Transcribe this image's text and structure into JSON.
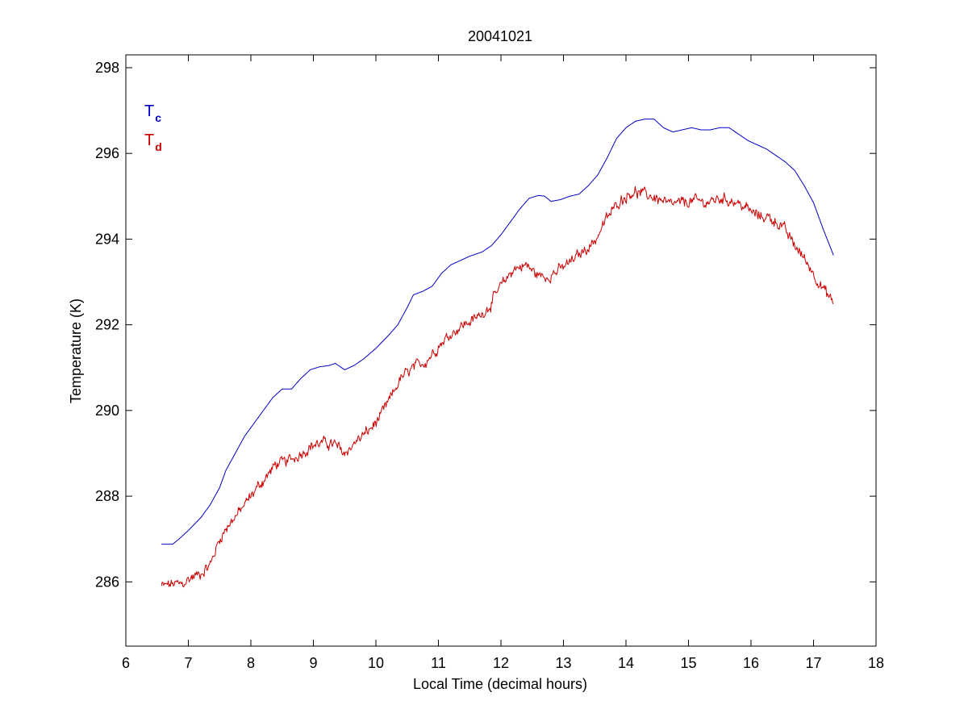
{
  "chart_data": {
    "type": "line",
    "title": "20041021",
    "xlabel": "Local Time (decimal hours)",
    "ylabel": "Temperature (K)",
    "xlim": [
      6,
      18
    ],
    "ylim": [
      284.5,
      298.3
    ],
    "xticks": [
      6,
      7,
      8,
      9,
      10,
      11,
      12,
      13,
      14,
      15,
      16,
      17,
      18
    ],
    "yticks": [
      286,
      288,
      290,
      292,
      294,
      296,
      298
    ],
    "grid": false,
    "legend_position": "top-left",
    "series": [
      {
        "legend_main": "T",
        "legend_sub": "c",
        "color": "#0000c8",
        "points": [
          [
            6.57,
            286.88
          ],
          [
            6.75,
            286.88
          ],
          [
            6.85,
            287.0
          ],
          [
            7.0,
            287.2
          ],
          [
            7.2,
            287.5
          ],
          [
            7.35,
            287.8
          ],
          [
            7.5,
            288.2
          ],
          [
            7.6,
            288.6
          ],
          [
            7.75,
            289.0
          ],
          [
            7.9,
            289.4
          ],
          [
            8.05,
            289.7
          ],
          [
            8.2,
            290.0
          ],
          [
            8.35,
            290.3
          ],
          [
            8.5,
            290.5
          ],
          [
            8.65,
            290.5
          ],
          [
            8.8,
            290.75
          ],
          [
            8.95,
            290.95
          ],
          [
            9.1,
            291.02
          ],
          [
            9.25,
            291.05
          ],
          [
            9.35,
            291.1
          ],
          [
            9.5,
            290.95
          ],
          [
            9.65,
            291.05
          ],
          [
            9.8,
            291.2
          ],
          [
            10.0,
            291.45
          ],
          [
            10.2,
            291.75
          ],
          [
            10.35,
            292.0
          ],
          [
            10.5,
            292.4
          ],
          [
            10.6,
            292.7
          ],
          [
            10.75,
            292.78
          ],
          [
            10.9,
            292.9
          ],
          [
            11.05,
            293.2
          ],
          [
            11.2,
            293.4
          ],
          [
            11.35,
            293.5
          ],
          [
            11.5,
            293.6
          ],
          [
            11.7,
            293.7
          ],
          [
            11.85,
            293.85
          ],
          [
            12.0,
            294.1
          ],
          [
            12.15,
            294.4
          ],
          [
            12.3,
            294.7
          ],
          [
            12.45,
            294.95
          ],
          [
            12.6,
            295.02
          ],
          [
            12.7,
            295.0
          ],
          [
            12.8,
            294.88
          ],
          [
            12.95,
            294.92
          ],
          [
            13.1,
            295.0
          ],
          [
            13.25,
            295.05
          ],
          [
            13.4,
            295.25
          ],
          [
            13.55,
            295.5
          ],
          [
            13.7,
            295.9
          ],
          [
            13.85,
            296.35
          ],
          [
            14.0,
            296.6
          ],
          [
            14.15,
            296.75
          ],
          [
            14.3,
            296.8
          ],
          [
            14.45,
            296.8
          ],
          [
            14.6,
            296.6
          ],
          [
            14.75,
            296.5
          ],
          [
            14.9,
            296.55
          ],
          [
            15.05,
            296.6
          ],
          [
            15.2,
            296.55
          ],
          [
            15.35,
            296.55
          ],
          [
            15.5,
            296.6
          ],
          [
            15.65,
            296.6
          ],
          [
            15.8,
            296.45
          ],
          [
            15.95,
            296.3
          ],
          [
            16.1,
            296.2
          ],
          [
            16.25,
            296.1
          ],
          [
            16.4,
            295.95
          ],
          [
            16.55,
            295.8
          ],
          [
            16.7,
            295.6
          ],
          [
            16.85,
            295.25
          ],
          [
            17.0,
            294.85
          ],
          [
            17.15,
            294.25
          ],
          [
            17.32,
            293.62
          ]
        ]
      },
      {
        "legend_main": "T",
        "legend_sub": "d",
        "color": "#cc0000",
        "noise": 0.18,
        "points": [
          [
            6.57,
            285.9
          ],
          [
            6.75,
            285.95
          ],
          [
            6.9,
            285.95
          ],
          [
            7.05,
            286.1
          ],
          [
            7.2,
            286.2
          ],
          [
            7.35,
            286.4
          ],
          [
            7.5,
            287.0
          ],
          [
            7.65,
            287.35
          ],
          [
            7.8,
            287.6
          ],
          [
            7.95,
            287.9
          ],
          [
            8.1,
            288.2
          ],
          [
            8.25,
            288.45
          ],
          [
            8.4,
            288.75
          ],
          [
            8.55,
            288.8
          ],
          [
            8.7,
            288.9
          ],
          [
            8.85,
            289.05
          ],
          [
            9.0,
            289.2
          ],
          [
            9.2,
            289.25
          ],
          [
            9.35,
            289.2
          ],
          [
            9.5,
            289.0
          ],
          [
            9.7,
            289.3
          ],
          [
            9.9,
            289.55
          ],
          [
            10.05,
            289.8
          ],
          [
            10.2,
            290.2
          ],
          [
            10.4,
            290.75
          ],
          [
            10.6,
            291.0
          ],
          [
            10.8,
            291.15
          ],
          [
            11.0,
            291.5
          ],
          [
            11.2,
            291.8
          ],
          [
            11.4,
            292.0
          ],
          [
            11.6,
            292.15
          ],
          [
            11.8,
            292.4
          ],
          [
            12.0,
            292.9
          ],
          [
            12.2,
            293.3
          ],
          [
            12.4,
            293.4
          ],
          [
            12.55,
            293.2
          ],
          [
            12.7,
            293.1
          ],
          [
            12.9,
            293.25
          ],
          [
            13.1,
            293.45
          ],
          [
            13.3,
            293.7
          ],
          [
            13.5,
            293.95
          ],
          [
            13.7,
            294.5
          ],
          [
            13.9,
            294.9
          ],
          [
            14.1,
            295.1
          ],
          [
            14.3,
            295.05
          ],
          [
            14.5,
            294.95
          ],
          [
            14.7,
            294.8
          ],
          [
            14.9,
            294.85
          ],
          [
            15.1,
            294.9
          ],
          [
            15.3,
            294.85
          ],
          [
            15.5,
            294.95
          ],
          [
            15.7,
            294.9
          ],
          [
            15.9,
            294.75
          ],
          [
            16.1,
            294.55
          ],
          [
            16.3,
            294.5
          ],
          [
            16.5,
            294.3
          ],
          [
            16.7,
            293.85
          ],
          [
            16.9,
            293.45
          ],
          [
            17.1,
            292.95
          ],
          [
            17.32,
            292.5
          ]
        ]
      }
    ]
  }
}
